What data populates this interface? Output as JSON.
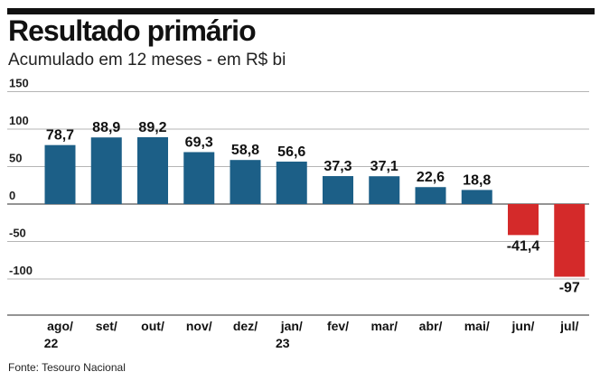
{
  "header": {
    "title": "Resultado primário",
    "subtitle": "Acumulado em 12 meses - em R$ bi"
  },
  "footer": {
    "source": "Fonte: Tesouro Nacional"
  },
  "colors": {
    "positive": "#1c5f87",
    "negative": "#d42a2a"
  },
  "chart_data": {
    "type": "bar",
    "title": "Resultado primário",
    "subtitle": "Acumulado em 12 meses - em R$ bi",
    "categories": [
      [
        "ago/",
        "22"
      ],
      [
        "set/"
      ],
      [
        "out/"
      ],
      [
        "nov/"
      ],
      [
        "dez/"
      ],
      [
        "jan/",
        "23"
      ],
      [
        "fev/"
      ],
      [
        "mar/"
      ],
      [
        "abr/"
      ],
      [
        "mai/"
      ],
      [
        "jun/"
      ],
      [
        "jul/"
      ]
    ],
    "values": [
      78.7,
      88.9,
      89.2,
      69.3,
      58.8,
      56.6,
      37.3,
      37.1,
      22.6,
      18.8,
      -41.4,
      -97
    ],
    "value_labels": [
      "78,7",
      "88,9",
      "89,2",
      "69,3",
      "58,8",
      "56,6",
      "37,3",
      "37,1",
      "22,6",
      "18,8",
      "-41,4",
      "-97"
    ],
    "yticks": [
      150,
      100,
      50,
      0,
      -50,
      -100
    ],
    "ylim": [
      -150,
      150
    ],
    "grid": true,
    "xlabel": "",
    "ylabel": ""
  }
}
